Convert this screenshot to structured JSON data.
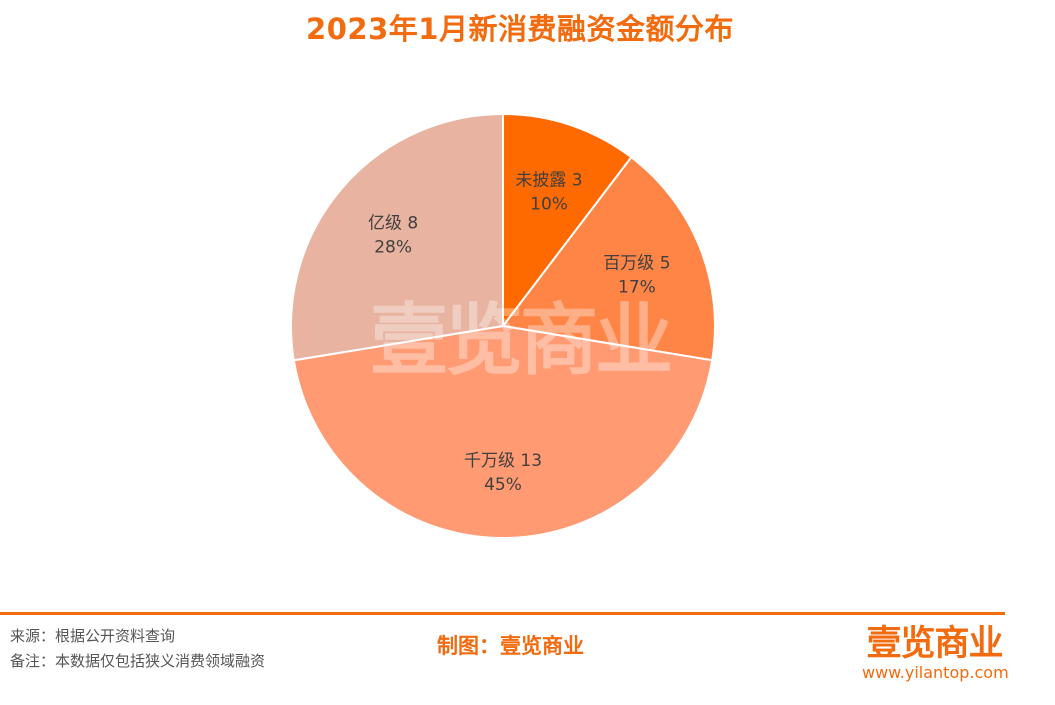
{
  "title": "2023年1月新消费融资金额分布",
  "chart_data": {
    "type": "pie",
    "title": "2023年1月新消费融资金额分布",
    "slices": [
      {
        "label": "未披露",
        "value": 3,
        "percent": "10%",
        "color": "#FF6A00"
      },
      {
        "label": "百万级",
        "value": 5,
        "percent": "17%",
        "color": "#FF8547"
      },
      {
        "label": "千万级",
        "value": 13,
        "percent": "45%",
        "color": "#FF9A72"
      },
      {
        "label": "亿级",
        "value": 8,
        "percent": "28%",
        "color": "#E8B3A0"
      }
    ],
    "start": "12 o'clock",
    "direction": "clockwise"
  },
  "watermark": "壹览商业",
  "footer": {
    "source": "来源：根据公开资料查询",
    "note": "备注：本数据仅包括狭义消费领域融资",
    "credit": "制图：壹览商业",
    "logo_text": "壹览商业",
    "url": "www.yilantop.com"
  }
}
